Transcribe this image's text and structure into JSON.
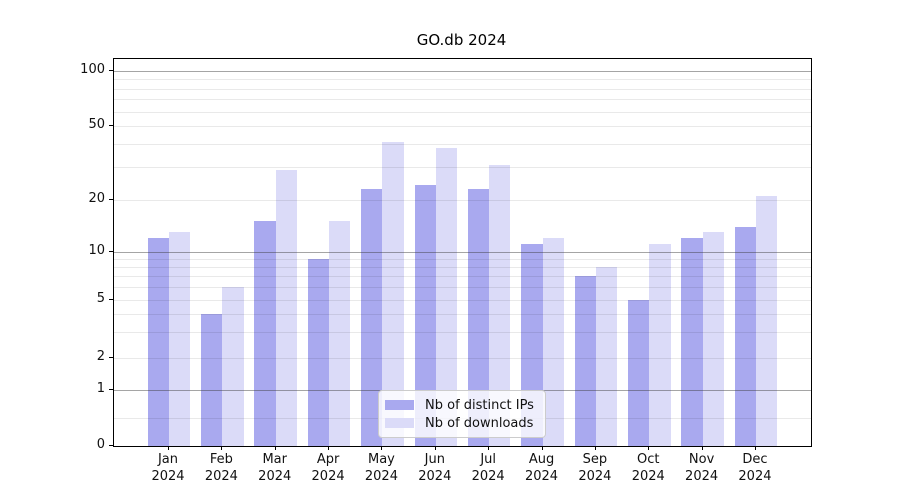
{
  "chart_data": {
    "type": "bar",
    "title": "GO.db 2024",
    "categories": [
      "Jan 2024",
      "Feb 2024",
      "Mar 2024",
      "Apr 2024",
      "May 2024",
      "Jun 2024",
      "Jul 2024",
      "Aug 2024",
      "Sep 2024",
      "Oct 2024",
      "Nov 2024",
      "Dec 2024"
    ],
    "series": [
      {
        "name": "Nb of distinct IPs",
        "color": "#a9a9ef",
        "values": [
          12,
          4,
          15,
          9,
          23,
          24,
          23,
          11,
          7,
          5,
          12,
          14
        ]
      },
      {
        "name": "Nb of downloads",
        "color": "#dbdbf8",
        "values": [
          13,
          6,
          29,
          15,
          41,
          38,
          31,
          12,
          8,
          11,
          13,
          21
        ]
      }
    ],
    "xlabel": "",
    "ylabel": "",
    "yscale": "asinh (log-like with linear region near 0)",
    "ytick_labels": [
      "100",
      "50",
      "20",
      "10",
      "5",
      "2",
      "1",
      "0"
    ],
    "yticks": [
      100,
      50,
      20,
      10,
      5,
      2,
      1,
      0
    ],
    "ylim": [
      0,
      110
    ],
    "grid": true,
    "legend_position": "lower center"
  }
}
